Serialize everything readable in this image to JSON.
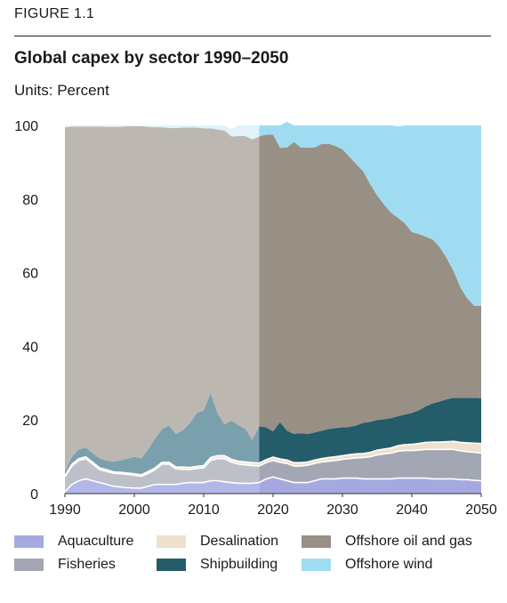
{
  "figure_label": "FIGURE 1.1",
  "units_label": "Units:",
  "units_value": "Percent",
  "chart_data": {
    "type": "area",
    "stacked": true,
    "title": "Global capex by sector 1990–2050",
    "xlabel": "",
    "ylabel": "",
    "xlim": [
      1990,
      2050
    ],
    "ylim": [
      0,
      100
    ],
    "x_ticks": [
      "1990",
      "2000",
      "2010",
      "2020",
      "2030",
      "2040",
      "2050"
    ],
    "y_ticks": [
      "0",
      "20",
      "40",
      "60",
      "80",
      "100"
    ],
    "projection_start": 2018,
    "x": [
      1990,
      1991,
      1992,
      1993,
      1994,
      1995,
      1996,
      1997,
      1998,
      1999,
      2000,
      2001,
      2002,
      2003,
      2004,
      2005,
      2006,
      2007,
      2008,
      2009,
      2010,
      2011,
      2012,
      2013,
      2014,
      2015,
      2016,
      2017,
      2018,
      2019,
      2020,
      2021,
      2022,
      2023,
      2024,
      2025,
      2026,
      2027,
      2028,
      2029,
      2030,
      2031,
      2032,
      2033,
      2034,
      2035,
      2036,
      2037,
      2038,
      2039,
      2040,
      2041,
      2042,
      2043,
      2044,
      2045,
      2046,
      2047,
      2048,
      2049,
      2050
    ],
    "series": [
      {
        "name": "Aquaculture",
        "color": "#b3b7e8",
        "color_projection": "#a6a9df",
        "values": [
          0.5,
          2.5,
          3.5,
          4,
          3.5,
          3,
          2.5,
          2,
          1.8,
          1.6,
          1.5,
          1.5,
          2,
          2.5,
          2.5,
          2.5,
          2.5,
          2.8,
          3,
          3,
          3,
          3.5,
          3.5,
          3.2,
          3,
          2.8,
          2.8,
          2.8,
          3,
          4,
          4.5,
          4,
          3.5,
          3,
          3,
          3,
          3.5,
          4,
          4,
          4,
          4.2,
          4.2,
          4.2,
          4,
          4,
          4,
          4,
          4,
          4.2,
          4.2,
          4.2,
          4.2,
          4.2,
          4,
          4,
          4,
          4,
          3.8,
          3.8,
          3.6,
          3.5
        ]
      },
      {
        "name": "Fisheries",
        "color": "#bdc0c8",
        "color_projection": "#a2a7b3",
        "values": [
          4,
          5,
          5.5,
          5.5,
          4.5,
          3.5,
          3.5,
          3.5,
          3.6,
          3.6,
          3.5,
          3.2,
          3.5,
          4,
          5.5,
          5.5,
          4.2,
          3.8,
          3.5,
          3.8,
          4,
          5.5,
          6,
          6.3,
          5.5,
          5.2,
          5,
          4.8,
          4.5,
          4.4,
          4.5,
          4.5,
          4.7,
          4.5,
          4.5,
          4.7,
          4.7,
          4.6,
          4.8,
          5,
          5.1,
          5.3,
          5.5,
          5.8,
          6,
          6.5,
          6.8,
          7,
          7.3,
          7.5,
          7.5,
          7.6,
          7.8,
          8,
          8,
          8,
          8,
          7.8,
          7.6,
          7.6,
          7.5
        ]
      },
      {
        "name": "Desalination",
        "color": "#f3e8da",
        "color_projection": "#efe0cd",
        "values": [
          0.3,
          0.5,
          0.5,
          0.5,
          0.5,
          0.5,
          0.5,
          0.4,
          0.4,
          0.4,
          0.4,
          0.4,
          0.5,
          0.5,
          0.5,
          0.5,
          0.5,
          0.6,
          0.6,
          0.6,
          0.6,
          0.8,
          0.8,
          0.8,
          0.8,
          0.8,
          0.8,
          0.8,
          0.8,
          0.8,
          0.9,
          0.9,
          0.9,
          0.9,
          0.9,
          0.9,
          0.9,
          0.9,
          1,
          1,
          1,
          1.1,
          1.1,
          1.1,
          1.2,
          1.3,
          1.3,
          1.4,
          1.5,
          1.6,
          1.7,
          1.8,
          1.9,
          2,
          2,
          2.1,
          2.2,
          2.3,
          2.4,
          2.5,
          2.6
        ]
      },
      {
        "name": "Shipbuilding",
        "color": "#7aa0ad",
        "color_projection": "#245c69",
        "values": [
          1.2,
          2,
          2.5,
          2.5,
          2.5,
          2.5,
          2.5,
          2.8,
          3.2,
          3.9,
          4.6,
          4.4,
          6,
          8,
          9,
          10,
          9,
          10,
          12,
          14.5,
          15,
          17.5,
          11.5,
          8.5,
          10.5,
          9.8,
          9,
          6.2,
          10,
          8.8,
          7,
          10,
          8,
          7.8,
          8,
          7.6,
          7.5,
          7.6,
          7.7,
          7.8,
          7.7,
          7.5,
          7.7,
          8.3,
          8.3,
          8.2,
          8.1,
          8.1,
          8,
          8.2,
          8.5,
          9,
          9.8,
          10.5,
          11,
          11.5,
          11.8,
          12.1,
          12.2,
          12.3,
          12.3
        ]
      },
      {
        "name": "Offshore oil and gas",
        "color": "#bcb8b1",
        "color_projection": "#988f85",
        "values": [
          93.5,
          89.7,
          87.7,
          87.2,
          88.7,
          90.2,
          90.6,
          90.9,
          90.6,
          90.3,
          89.8,
          90.3,
          87.6,
          84.5,
          82,
          80.8,
          83.1,
          82.2,
          80.3,
          77.5,
          76.6,
          71.9,
          77.1,
          79.8,
          77.2,
          78.5,
          79.5,
          81.6,
          78.7,
          79.5,
          80.6,
          74.5,
          76.9,
          79.3,
          77.6,
          77.8,
          77.4,
          77.9,
          77.5,
          76.6,
          75.5,
          73.4,
          71,
          68.3,
          64.5,
          61,
          58.3,
          55.8,
          53.9,
          51.9,
          49.1,
          47.9,
          46.1,
          44.5,
          42,
          38.4,
          34.5,
          30,
          27,
          25,
          25.1
        ]
      },
      {
        "name": "Offshore wind",
        "color": "#e0f3fb",
        "color_projection": "#a0dcf1",
        "values": [
          0.5,
          0.3,
          0.3,
          0.3,
          0.3,
          0.3,
          0.4,
          0.4,
          0.4,
          0.2,
          0.2,
          0.2,
          0.4,
          0.5,
          0.5,
          0.7,
          0.7,
          0.6,
          0.6,
          0.6,
          0.8,
          0.8,
          1.1,
          1.4,
          2,
          2.9,
          2.9,
          3.8,
          3,
          2.5,
          2.5,
          6.1,
          7,
          4.5,
          6,
          6,
          6,
          5,
          5,
          5.6,
          6.5,
          8.5,
          10.5,
          12.5,
          16,
          19,
          21.5,
          23.7,
          24.8,
          26.6,
          29,
          29.5,
          30.2,
          31,
          33,
          36,
          39.5,
          44,
          47,
          49,
          49
        ]
      }
    ]
  }
}
